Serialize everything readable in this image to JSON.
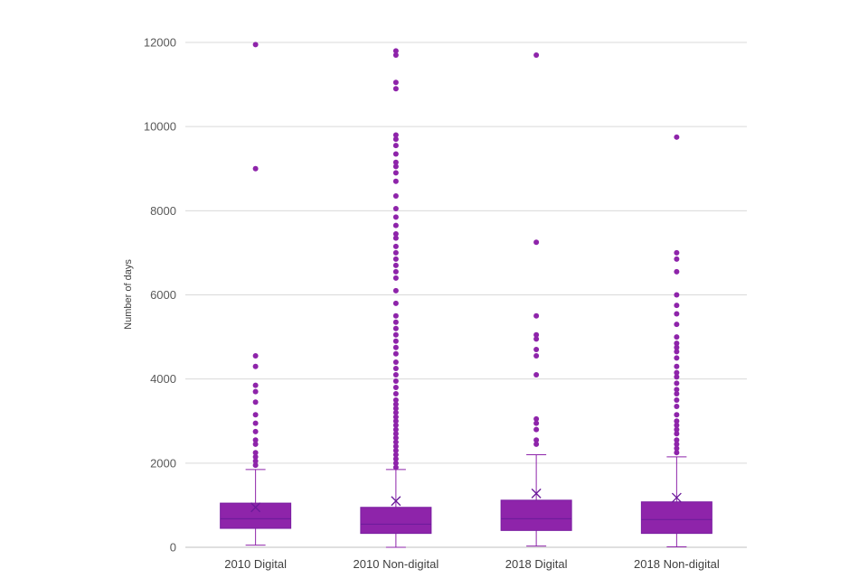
{
  "chart_data": {
    "type": "box",
    "title": "",
    "xlabel": "",
    "ylabel": "Number of days",
    "ylim": [
      0,
      12000
    ],
    "y_ticks": [
      "0",
      "2000",
      "4000",
      "6000",
      "8000",
      "10000",
      "12000"
    ],
    "y_tick_values": [
      0,
      2000,
      4000,
      6000,
      8000,
      10000,
      12000
    ],
    "grid": true,
    "color": "#8E24AA",
    "categories": [
      "2010 Digital",
      "2010 Non-digital",
      "2018 Digital",
      "2018 Non-digital"
    ],
    "boxes": [
      {
        "name": "2010 Digital",
        "whisker_low": 50,
        "q1": 450,
        "median": 680,
        "q3": 1050,
        "whisker_high": 1850,
        "mean": 950,
        "outliers": [
          1950,
          2050,
          2150,
          2250,
          2450,
          2550,
          2750,
          2950,
          3150,
          3450,
          3700,
          3850,
          4300,
          4550,
          9000,
          11950
        ]
      },
      {
        "name": "2010 Non-digital",
        "whisker_low": 0,
        "q1": 330,
        "median": 550,
        "q3": 950,
        "whisker_high": 1850,
        "mean": 1100,
        "outliers": [
          1900,
          2000,
          2100,
          2200,
          2300,
          2400,
          2500,
          2600,
          2700,
          2800,
          2900,
          3000,
          3100,
          3200,
          3300,
          3400,
          3500,
          3650,
          3800,
          3950,
          4100,
          4250,
          4400,
          4600,
          4750,
          4900,
          5050,
          5200,
          5350,
          5500,
          5800,
          6100,
          6400,
          6550,
          6700,
          6850,
          7000,
          7150,
          7350,
          7450,
          7650,
          7850,
          8050,
          8350,
          8700,
          8900,
          9050,
          9150,
          9350,
          9550,
          9700,
          9800,
          10900,
          11050,
          11700,
          11800
        ]
      },
      {
        "name": "2018 Digital",
        "whisker_low": 30,
        "q1": 400,
        "median": 680,
        "q3": 1120,
        "whisker_high": 2200,
        "mean": 1280,
        "outliers": [
          2450,
          2550,
          2800,
          2950,
          3050,
          4100,
          4550,
          4700,
          4950,
          5050,
          5500,
          7250,
          11700
        ]
      },
      {
        "name": "2018 Non-digital",
        "whisker_low": 10,
        "q1": 330,
        "median": 660,
        "q3": 1080,
        "whisker_high": 2150,
        "mean": 1180,
        "outliers": [
          2250,
          2350,
          2450,
          2550,
          2700,
          2800,
          2900,
          3000,
          3150,
          3350,
          3500,
          3650,
          3750,
          3900,
          4050,
          4150,
          4300,
          4500,
          4650,
          4750,
          4850,
          5000,
          5300,
          5550,
          5750,
          6000,
          6550,
          6850,
          7000,
          9750
        ]
      }
    ]
  }
}
